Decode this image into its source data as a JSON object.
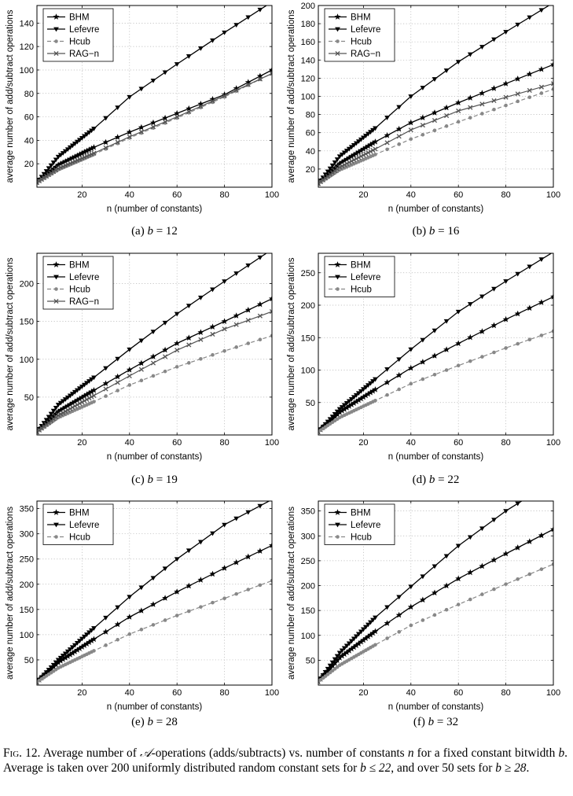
{
  "colors": {
    "black": "#000000",
    "darkgray": "#555555",
    "gray": "#888888",
    "grid": "#b5b5b5"
  },
  "chart_data": [
    {
      "id": "a",
      "type": "line",
      "caption_label": "(a)",
      "caption_param": "b = 12",
      "xlabel": "n (number of constants)",
      "ylabel": "average number of add/subtract operations",
      "xlim": [
        1,
        100
      ],
      "ylim": [
        0,
        155
      ],
      "xticks": [
        20,
        40,
        60,
        80,
        100
      ],
      "yticks": [
        20,
        40,
        60,
        80,
        100,
        120,
        140
      ],
      "grid": true,
      "legend": "top-left",
      "series": [
        {
          "name": "BHM",
          "marker": "star",
          "color": "#000000",
          "dash": false,
          "x": [
            1,
            10,
            25,
            40,
            60,
            80,
            100
          ],
          "y": [
            4,
            19,
            34,
            47,
            63,
            79,
            100
          ]
        },
        {
          "name": "Lefevre",
          "marker": "tri",
          "color": "#000000",
          "dash": false,
          "x": [
            1,
            10,
            25,
            40,
            60,
            80,
            100
          ],
          "y": [
            4,
            26,
            50,
            77,
            105,
            132,
            158
          ]
        },
        {
          "name": "Hcub",
          "marker": "dot",
          "color": "#888888",
          "dash": true,
          "x": [
            1,
            10,
            25,
            40,
            60,
            80,
            100
          ],
          "y": [
            4,
            15,
            28,
            42,
            59,
            77,
            97
          ]
        },
        {
          "name": "RAG−n",
          "marker": "x",
          "color": "#555555",
          "dash": false,
          "x": [
            1,
            10,
            25,
            40,
            60,
            80,
            100
          ],
          "y": [
            4,
            16,
            29,
            43,
            60,
            78,
            97
          ]
        }
      ]
    },
    {
      "id": "b",
      "type": "line",
      "caption_label": "(b)",
      "caption_param": "b = 16",
      "xlabel": "n (number of constants)",
      "ylabel": "average number of add/subtract operations",
      "xlim": [
        1,
        100
      ],
      "ylim": [
        0,
        200
      ],
      "xticks": [
        20,
        40,
        60,
        80,
        100
      ],
      "yticks": [
        20,
        40,
        60,
        80,
        100,
        120,
        140,
        160,
        180,
        200
      ],
      "grid": true,
      "legend": "top-left",
      "series": [
        {
          "name": "BHM",
          "marker": "star",
          "color": "#000000",
          "dash": false,
          "x": [
            1,
            10,
            25,
            40,
            60,
            80,
            100
          ],
          "y": [
            4,
            26,
            50,
            71,
            93,
            114,
            135
          ]
        },
        {
          "name": "Lefevre",
          "marker": "tri",
          "color": "#000000",
          "dash": false,
          "x": [
            1,
            10,
            25,
            40,
            60,
            80,
            100
          ],
          "y": [
            4,
            34,
            65,
            100,
            138,
            171,
            203
          ]
        },
        {
          "name": "Hcub",
          "marker": "dot",
          "color": "#888888",
          "dash": true,
          "x": [
            1,
            10,
            25,
            40,
            60,
            80,
            100
          ],
          "y": [
            4,
            19,
            36,
            53,
            72,
            90,
            108
          ]
        },
        {
          "name": "RAG−n",
          "marker": "x",
          "color": "#555555",
          "dash": false,
          "x": [
            1,
            10,
            25,
            40,
            60,
            80,
            100
          ],
          "y": [
            4,
            22,
            42,
            63,
            84,
            99,
            114
          ]
        }
      ]
    },
    {
      "id": "c",
      "type": "line",
      "caption_label": "(c)",
      "caption_param": "b = 19",
      "xlabel": "n (number of constants)",
      "ylabel": "average number of add/subtract operations",
      "xlim": [
        1,
        100
      ],
      "ylim": [
        0,
        240
      ],
      "xticks": [
        20,
        40,
        60,
        80,
        100
      ],
      "yticks": [
        50,
        100,
        150,
        200
      ],
      "grid": true,
      "legend": "top-left",
      "series": [
        {
          "name": "BHM",
          "marker": "star",
          "color": "#000000",
          "dash": false,
          "x": [
            1,
            10,
            25,
            40,
            60,
            80,
            100
          ],
          "y": [
            4,
            31,
            59,
            86,
            121,
            150,
            180
          ]
        },
        {
          "name": "Lefevre",
          "marker": "tri",
          "color": "#000000",
          "dash": false,
          "x": [
            1,
            10,
            25,
            40,
            60,
            80,
            100
          ],
          "y": [
            4,
            40,
            76,
            113,
            160,
            203,
            245
          ]
        },
        {
          "name": "Hcub",
          "marker": "dot",
          "color": "#888888",
          "dash": true,
          "x": [
            1,
            10,
            25,
            40,
            60,
            80,
            100
          ],
          "y": [
            4,
            23,
            44,
            66,
            90,
            111,
            131
          ]
        },
        {
          "name": "RAG−n",
          "marker": "x",
          "color": "#555555",
          "dash": false,
          "x": [
            1,
            10,
            25,
            40,
            60,
            80,
            100
          ],
          "y": [
            4,
            26,
            52,
            78,
            112,
            140,
            163
          ]
        }
      ]
    },
    {
      "id": "d",
      "type": "line",
      "caption_label": "(d)",
      "caption_param": "b = 22",
      "xlabel": "n (number of constants)",
      "ylabel": "average number of add/subtract operations",
      "xlim": [
        1,
        100
      ],
      "ylim": [
        0,
        280
      ],
      "xticks": [
        20,
        40,
        60,
        80,
        100
      ],
      "yticks": [
        50,
        100,
        150,
        200,
        250
      ],
      "grid": true,
      "legend": "top-left",
      "series": [
        {
          "name": "BHM",
          "marker": "star",
          "color": "#000000",
          "dash": false,
          "x": [
            1,
            10,
            25,
            40,
            60,
            80,
            100
          ],
          "y": [
            5,
            35,
            70,
            103,
            141,
            178,
            213
          ]
        },
        {
          "name": "Lefevre",
          "marker": "tri",
          "color": "#000000",
          "dash": false,
          "x": [
            1,
            10,
            25,
            40,
            60,
            80,
            100
          ],
          "y": [
            5,
            40,
            86,
            132,
            190,
            237,
            282
          ]
        },
        {
          "name": "Hcub",
          "marker": "dot",
          "color": "#888888",
          "dash": true,
          "x": [
            1,
            10,
            25,
            40,
            60,
            80,
            100
          ],
          "y": [
            5,
            27,
            53,
            79,
            107,
            134,
            160
          ]
        }
      ]
    },
    {
      "id": "e",
      "type": "line",
      "caption_label": "(e)",
      "caption_param": "b = 28",
      "xlabel": "n (number of constants)",
      "ylabel": "average number of add/subtract operations",
      "xlim": [
        1,
        100
      ],
      "ylim": [
        0,
        365
      ],
      "xticks": [
        20,
        40,
        60,
        80,
        100
      ],
      "yticks": [
        50,
        100,
        150,
        200,
        250,
        300,
        350
      ],
      "grid": true,
      "legend": "top-left",
      "series": [
        {
          "name": "BHM",
          "marker": "star",
          "color": "#000000",
          "dash": false,
          "x": [
            1,
            10,
            25,
            40,
            60,
            80,
            100
          ],
          "y": [
            6,
            45,
            91,
            135,
            185,
            232,
            277
          ]
        },
        {
          "name": "Lefevre",
          "marker": "tri",
          "color": "#000000",
          "dash": false,
          "x": [
            1,
            10,
            25,
            40,
            60,
            80,
            100
          ],
          "y": [
            6,
            50,
            113,
            175,
            250,
            318,
            368
          ]
        },
        {
          "name": "Hcub",
          "marker": "dot",
          "color": "#888888",
          "dash": true,
          "x": [
            1,
            10,
            25,
            40,
            60,
            80,
            100
          ],
          "y": [
            6,
            34,
            68,
            101,
            138,
            172,
            207
          ]
        }
      ]
    },
    {
      "id": "f",
      "type": "line",
      "caption_label": "(f)",
      "caption_param": "b = 32",
      "xlabel": "n (number of constants)",
      "ylabel": "average number of add/subtract operations",
      "xlim": [
        1,
        100
      ],
      "ylim": [
        0,
        370
      ],
      "xticks": [
        20,
        40,
        60,
        80,
        100
      ],
      "yticks": [
        50,
        100,
        150,
        200,
        250,
        300,
        350
      ],
      "grid": true,
      "legend": "top-left",
      "series": [
        {
          "name": "BHM",
          "marker": "star",
          "color": "#000000",
          "dash": false,
          "x": [
            1,
            10,
            25,
            40,
            60,
            80,
            100
          ],
          "y": [
            7,
            55,
            108,
            157,
            214,
            264,
            313
          ]
        },
        {
          "name": "Lefevre",
          "marker": "tri",
          "color": "#000000",
          "dash": false,
          "x": [
            1,
            10,
            25,
            40,
            60,
            80,
            90
          ],
          "y": [
            7,
            65,
            136,
            198,
            280,
            350,
            380
          ]
        },
        {
          "name": "Hcub",
          "marker": "dot",
          "color": "#888888",
          "dash": true,
          "x": [
            1,
            10,
            25,
            40,
            60,
            80,
            100
          ],
          "y": [
            7,
            40,
            81,
            120,
            162,
            203,
            243
          ]
        }
      ]
    }
  ],
  "caption": {
    "label": "Fig. 12.",
    "part1": "Average number of ",
    "symbol": "𝒜",
    "part2": "-operations (adds/subtracts) vs. number of constants ",
    "n": "n",
    "part3": " for a fixed constant bitwidth ",
    "b1": "b",
    "part4": ". Average is taken over 200 uniformly distributed random constant sets for ",
    "cond1": "b ≤ 22",
    "part5": ", and over 50 sets for ",
    "cond2": "b ≥ 28",
    "part6": "."
  }
}
